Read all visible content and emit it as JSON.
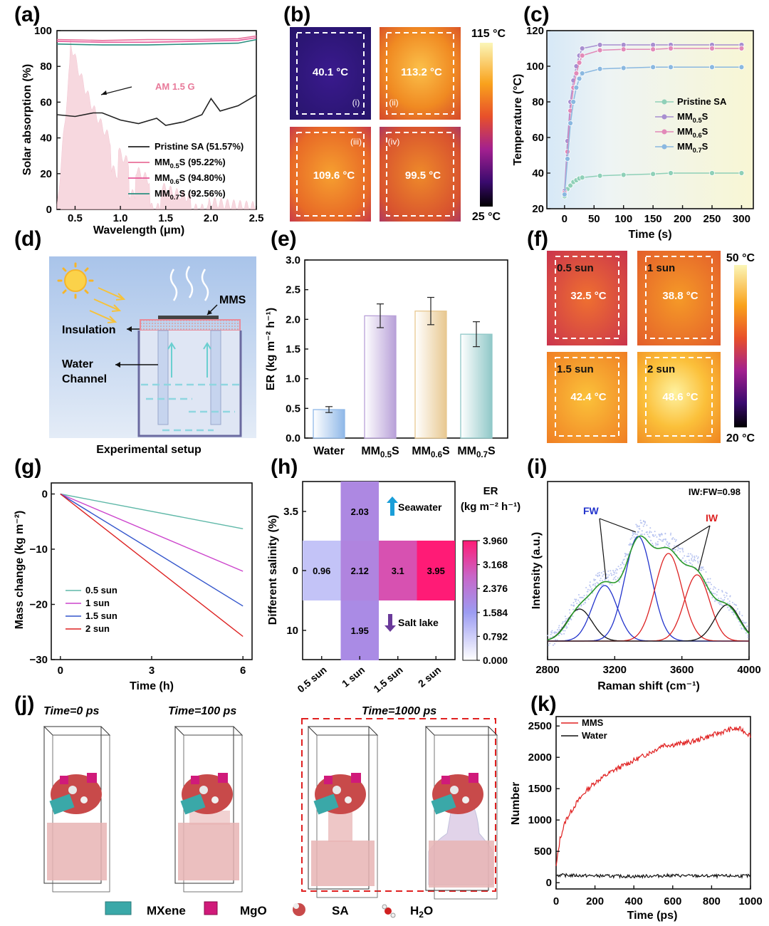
{
  "panel_labels": [
    "(a)",
    "(b)",
    "(c)",
    "(d)",
    "(e)",
    "(f)",
    "(g)",
    "(h)",
    "(i)",
    "(j)",
    "(k)"
  ],
  "colors": {
    "pristine": "#222222",
    "mm05": "#e8709a",
    "mm06": "#e65a9a",
    "mm07": "#2a8f80",
    "c_pristine": "#8fd0b8",
    "c_mm05": "#a88fd0",
    "c_mm06": "#e28ab8",
    "c_mm07": "#8ab8e0",
    "g_05": "#5fb8a8",
    "g_1": "#cc44cc",
    "g_15": "#3355cc",
    "g_2": "#dd2222",
    "fw": "#2233cc",
    "iw": "#dd2222",
    "envelope": "#2a9a2a",
    "mms": "#e02020",
    "water": "#111111"
  },
  "chart_data": [
    {
      "panel": "a",
      "type": "line",
      "xlabel": "Wavelength (μm)",
      "ylabel": "Solar absorption (%)",
      "xlim": [
        0.3,
        2.5
      ],
      "ylim": [
        0,
        100
      ],
      "xticks": [
        "0.5",
        "1.0",
        "1.5",
        "2.0",
        "2.5"
      ],
      "yticks": [
        "0",
        "20",
        "40",
        "60",
        "80",
        "100"
      ],
      "annotation": "AM 1.5 G",
      "series": [
        {
          "name": "Pristine SA (51.57%)",
          "key": "pristine",
          "x": [
            0.3,
            0.5,
            0.7,
            0.8,
            1.0,
            1.2,
            1.4,
            1.5,
            1.7,
            1.9,
            2.0,
            2.1,
            2.3,
            2.5
          ],
          "y": [
            53,
            52,
            54,
            54,
            50,
            48,
            51,
            47,
            49,
            53,
            62,
            55,
            58,
            64
          ]
        },
        {
          "name": "MM0.5S (95.22%)",
          "key": "mm05",
          "x": [
            0.3,
            0.8,
            1.3,
            1.8,
            2.3,
            2.5
          ],
          "y": [
            95,
            94.5,
            95,
            95,
            95.5,
            97
          ]
        },
        {
          "name": "MM0.6S (94.80%)",
          "key": "mm06",
          "x": [
            0.3,
            0.8,
            1.3,
            1.8,
            2.3,
            2.5
          ],
          "y": [
            94,
            93.5,
            93.5,
            94,
            94.5,
            96
          ]
        },
        {
          "name": "MM0.7S (92.56%)",
          "key": "mm07",
          "x": [
            0.3,
            0.8,
            1.3,
            1.8,
            2.3,
            2.5
          ],
          "y": [
            92.5,
            92,
            92,
            92.5,
            93,
            95
          ]
        }
      ],
      "legend": [
        {
          "prefix": "Pristine SA (51.57%)",
          "sub": "",
          "suffix": ""
        },
        {
          "prefix": "MM",
          "sub": "0.5",
          "suffix": "S (95.22%)"
        },
        {
          "prefix": "MM",
          "sub": "0.6",
          "suffix": "S (94.80%)"
        },
        {
          "prefix": "MM",
          "sub": "0.7",
          "suffix": "S (92.56%)"
        }
      ]
    },
    {
      "panel": "b",
      "type": "heatmap",
      "images": [
        {
          "temp": "40.1 °C",
          "label": "(i)"
        },
        {
          "temp": "113.2 °C",
          "label": "(ii)"
        },
        {
          "temp": "109.6 °C",
          "label": "(iii)"
        },
        {
          "temp": "99.5 °C",
          "label": "(iv)"
        }
      ],
      "scale_max": "115 °C",
      "scale_min": "25 °C"
    },
    {
      "panel": "c",
      "type": "line",
      "xlabel": "Time (s)",
      "ylabel": "Temperature (°C)",
      "xlim": [
        -20,
        310
      ],
      "ylim": [
        20,
        120
      ],
      "xticks": [
        "0",
        "50",
        "100",
        "150",
        "200",
        "250",
        "300"
      ],
      "yticks": [
        "20",
        "40",
        "60",
        "80",
        "100",
        "120"
      ],
      "series": [
        {
          "key": "c_pristine",
          "x": [
            0,
            5,
            10,
            15,
            20,
            25,
            30,
            60,
            100,
            150,
            180,
            250,
            300
          ],
          "y": [
            27,
            31,
            33,
            35,
            36,
            37,
            37.5,
            38.5,
            39,
            39.5,
            40,
            40,
            40
          ]
        },
        {
          "key": "c_mm05",
          "x": [
            0,
            5,
            10,
            15,
            20,
            25,
            30,
            60,
            100,
            150,
            180,
            250,
            300
          ],
          "y": [
            30,
            58,
            80,
            92,
            100,
            106,
            110,
            112,
            112,
            112,
            112,
            112,
            112
          ]
        },
        {
          "key": "c_mm06",
          "x": [
            0,
            5,
            10,
            15,
            20,
            25,
            30,
            60,
            100,
            150,
            180,
            250,
            300
          ],
          "y": [
            29,
            52,
            75,
            88,
            96,
            102,
            106,
            109,
            109.5,
            109.5,
            110,
            110,
            110
          ]
        },
        {
          "key": "c_mm07",
          "x": [
            0,
            5,
            10,
            15,
            20,
            25,
            30,
            60,
            100,
            150,
            180,
            250,
            300
          ],
          "y": [
            28,
            48,
            68,
            80,
            88,
            93,
            96,
            98.5,
            99,
            99.5,
            99.5,
            99.5,
            99.5
          ]
        }
      ],
      "legend": [
        {
          "prefix": "Pristine SA",
          "sub": "",
          "suffix": ""
        },
        {
          "prefix": "MM",
          "sub": "0.5",
          "suffix": "S"
        },
        {
          "prefix": "MM",
          "sub": "0.6",
          "suffix": "S"
        },
        {
          "prefix": "MM",
          "sub": "0.7",
          "suffix": "S"
        }
      ]
    },
    {
      "panel": "e",
      "type": "bar",
      "ylabel": "ER (kg m⁻² h⁻¹)",
      "ylim": [
        0,
        3.0
      ],
      "yticks": [
        "0.0",
        "0.5",
        "1.0",
        "1.5",
        "2.0",
        "2.5",
        "3.0"
      ],
      "categories": [
        {
          "prefix": "Water",
          "sub": "",
          "suffix": ""
        },
        {
          "prefix": "MM",
          "sub": "0.5",
          "suffix": "S"
        },
        {
          "prefix": "MM",
          "sub": "0.6",
          "suffix": "S"
        },
        {
          "prefix": "MM",
          "sub": "0.7",
          "suffix": "S"
        }
      ],
      "values": [
        0.48,
        2.06,
        2.14,
        1.75
      ],
      "errors": [
        0.05,
        0.2,
        0.23,
        0.21
      ],
      "bar_colors": [
        "#8fb8e8",
        "#b8a0d8",
        "#e8c890",
        "#90c8c8"
      ]
    },
    {
      "panel": "f",
      "type": "heatmap",
      "images": [
        {
          "sun": "0.5 sun",
          "temp": "32.5 °C"
        },
        {
          "sun": "1 sun",
          "temp": "38.8 °C"
        },
        {
          "sun": "1.5 sun",
          "temp": "42.4 °C"
        },
        {
          "sun": "2 sun",
          "temp": "48.6 °C"
        }
      ],
      "scale_max": "50 °C",
      "scale_min": "20 °C"
    },
    {
      "panel": "g",
      "type": "line",
      "xlabel": "Time (h)",
      "ylabel": "Mass change (kg m⁻²)",
      "xlim": [
        -0.3,
        6.3
      ],
      "ylim": [
        -30,
        2
      ],
      "xticks": [
        "0",
        "3",
        "6"
      ],
      "yticks": [
        "0",
        "−10",
        "−20",
        "−30"
      ],
      "series": [
        {
          "name": "0.5 sun",
          "key": "g_05",
          "x": [
            0,
            6
          ],
          "y": [
            0,
            -6.3
          ]
        },
        {
          "name": "1 sun",
          "key": "g_1",
          "x": [
            0,
            6
          ],
          "y": [
            0,
            -14
          ]
        },
        {
          "name": "1.5 sun",
          "key": "g_15",
          "x": [
            0,
            6
          ],
          "y": [
            0,
            -20.3
          ]
        },
        {
          "name": "2 sun",
          "key": "g_2",
          "x": [
            0,
            6
          ],
          "y": [
            0,
            -25.8
          ]
        }
      ]
    },
    {
      "panel": "h",
      "type": "heatmap",
      "ylabel": "Different salinity (%)",
      "xcategories": [
        "0.5 sun",
        "1 sun",
        "1.5 sun",
        "2 sun"
      ],
      "ycategories": [
        "3.5",
        "0",
        "10"
      ],
      "cells": [
        {
          "row": 0,
          "col": 1,
          "value": 2.03
        },
        {
          "row": 1,
          "col": 0,
          "value": 0.96
        },
        {
          "row": 1,
          "col": 1,
          "value": 2.12
        },
        {
          "row": 1,
          "col": 2,
          "value": 3.1
        },
        {
          "row": 1,
          "col": 3,
          "value": 3.95
        },
        {
          "row": 2,
          "col": 1,
          "value": 1.95
        }
      ],
      "seawater_label": "Seawater",
      "saltlake_label": "Salt lake",
      "colorbar_title_1": "ER",
      "colorbar_title_2": "(kg m⁻² h⁻¹)",
      "colorbar_ticks": [
        "3.960",
        "3.168",
        "2.376",
        "1.584",
        "0.792",
        "0.000"
      ],
      "vmin": 0,
      "vmax": 3.96
    },
    {
      "panel": "i",
      "type": "line",
      "xlabel": "Raman shift (cm⁻¹)",
      "ylabel": "Intensity (a.u.)",
      "xlim": [
        2800,
        4000
      ],
      "xticks": [
        "2800",
        "3200",
        "3600",
        "4000"
      ],
      "ratio_label": "IW:FW=0.98",
      "fw_label": "FW",
      "iw_label": "IW",
      "peaks": [
        {
          "center": 2990,
          "height": 0.3,
          "width": 75,
          "key": "water"
        },
        {
          "center": 3140,
          "height": 0.52,
          "width": 75,
          "key": "fw"
        },
        {
          "center": 3340,
          "height": 0.98,
          "width": 80,
          "key": "fw"
        },
        {
          "center": 3520,
          "height": 0.82,
          "width": 80,
          "key": "iw"
        },
        {
          "center": 3690,
          "height": 0.62,
          "width": 75,
          "key": "iw"
        },
        {
          "center": 3870,
          "height": 0.34,
          "width": 75,
          "key": "water"
        }
      ]
    },
    {
      "panel": "k",
      "type": "line",
      "xlabel": "Time (ps)",
      "ylabel": "Number",
      "xlim": [
        0,
        1000
      ],
      "ylim": [
        -100,
        2650
      ],
      "xticks": [
        "0",
        "200",
        "400",
        "600",
        "800",
        "1000"
      ],
      "yticks": [
        "0",
        "500",
        "1000",
        "1500",
        "2000",
        "2500"
      ],
      "series": [
        {
          "name": "MMS",
          "key": "mms",
          "x": [
            0,
            20,
            50,
            100,
            150,
            200,
            250,
            300,
            400,
            500,
            550,
            600,
            700,
            800,
            900,
            950,
            1000
          ],
          "y": [
            250,
            700,
            1000,
            1250,
            1450,
            1600,
            1700,
            1800,
            1950,
            2100,
            2200,
            2200,
            2250,
            2350,
            2450,
            2450,
            2350
          ]
        },
        {
          "name": "Water",
          "key": "water",
          "x": [
            0,
            200,
            400,
            600,
            800,
            1000
          ],
          "y": [
            120,
            110,
            100,
            115,
            105,
            110
          ]
        }
      ]
    }
  ],
  "panel_d": {
    "mms_label": "MMS",
    "insulation_label": "Insulation",
    "water_label_1": "Water",
    "water_label_2": "Channel",
    "caption": "Experimental setup"
  },
  "panel_j": {
    "times": [
      "Time=0 ps",
      "Time=100 ps",
      "Time=1000 ps"
    ],
    "legend": [
      {
        "prefix": "MXene",
        "sub": "",
        "icon": "mxene-icon"
      },
      {
        "prefix": "MgO",
        "sub": "",
        "icon": "mgo-icon"
      },
      {
        "prefix": "SA",
        "sub": "",
        "icon": "sa-icon"
      },
      {
        "prefix": "H",
        "sub": "2",
        "suffix": "O",
        "icon": "h2o-icon"
      }
    ]
  }
}
